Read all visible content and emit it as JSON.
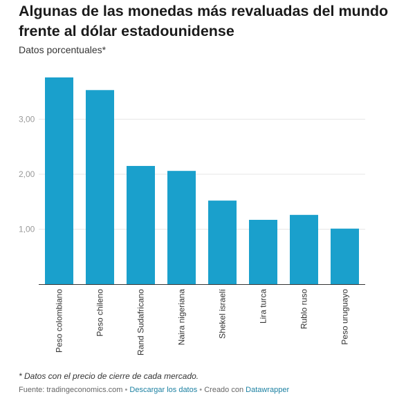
{
  "header": {
    "title": "Algunas de las monedas más revaluadas del mundo frente al dólar estadounidense",
    "subtitle": "Datos porcentuales*"
  },
  "chart_data": {
    "type": "bar",
    "title": "Algunas de las monedas más revaluadas del mundo frente al dólar estadounidense",
    "subtitle": "Datos porcentuales*",
    "xlabel": "",
    "ylabel": "",
    "categories": [
      "Peso colombiano",
      "Peso chileno",
      "Rand Sudafricano",
      "Naira nigeriana",
      "Shekel israelí",
      "Lira turca",
      "Rublo ruso",
      "Peso uruguayo"
    ],
    "values": [
      3.76,
      3.53,
      2.15,
      2.06,
      1.52,
      1.17,
      1.26,
      1.01
    ],
    "ylim": [
      0,
      3.76
    ],
    "yticks": [
      1.0,
      2.0,
      3.0
    ],
    "ytick_labels": [
      "1,00",
      "2,00",
      "3,00"
    ],
    "grid": true,
    "bar_color": "#1aa0cc"
  },
  "footer": {
    "note": "* Datos con el precio de cierre de cada mercado.",
    "source": "Fuente: tradingeconomics.com",
    "sep1": "•",
    "download": "Descargar los datos",
    "sep2": "•",
    "created": "Creado con",
    "tool": "Datawrapper"
  }
}
